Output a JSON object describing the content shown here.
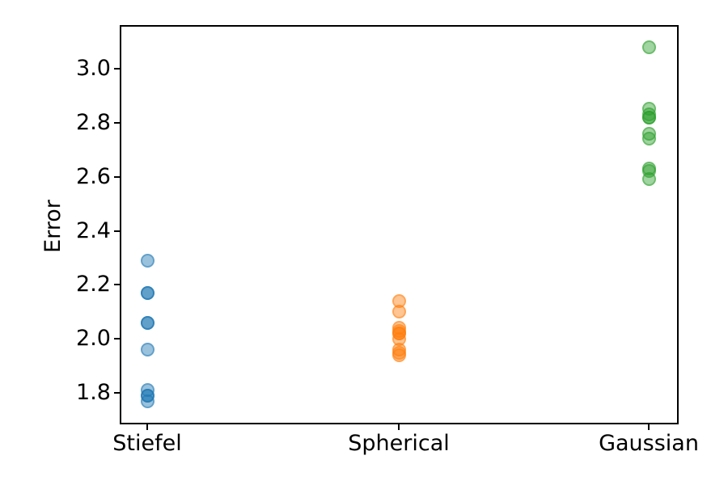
{
  "figure": {
    "background": "#ffffff"
  },
  "chart_data": {
    "type": "scatter",
    "title": "",
    "xlabel": "",
    "ylabel": "Error",
    "categories": [
      "Stiefel",
      "Spherical",
      "Gaussian"
    ],
    "series": [
      {
        "name": "Stiefel",
        "color": "#1f77b4",
        "values": [
          2.29,
          2.17,
          2.17,
          2.06,
          2.06,
          1.96,
          1.81,
          1.79,
          1.79,
          1.77
        ]
      },
      {
        "name": "Spherical",
        "color": "#ff7f0e",
        "values": [
          2.14,
          2.1,
          2.04,
          2.03,
          2.02,
          2.02,
          2.0,
          1.96,
          1.95,
          1.94
        ]
      },
      {
        "name": "Gaussian",
        "color": "#2ca02c",
        "values": [
          3.08,
          2.85,
          2.83,
          2.82,
          2.82,
          2.76,
          2.74,
          2.63,
          2.62,
          2.59
        ]
      }
    ],
    "yticks": [
      "1.8",
      "2.0",
      "2.2",
      "2.4",
      "2.6",
      "2.8",
      "3.0"
    ],
    "ylim": [
      1.69,
      3.16
    ],
    "marker_alpha": 0.45,
    "grid": false,
    "legend": false,
    "axis_color": "#000000"
  }
}
